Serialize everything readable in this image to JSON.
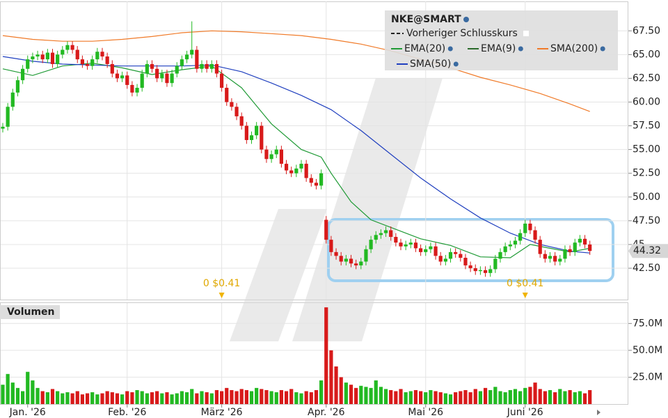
{
  "chart_data": {
    "type": "candlestick",
    "legend_title": "NKE@SMART",
    "prev_close_label": "Vorheriger Schlusskurs",
    "categories": [
      null,
      null,
      null,
      null,
      null,
      "Jan. '26",
      null,
      null,
      null,
      null,
      null,
      null,
      null,
      null,
      null,
      null,
      null,
      null,
      null,
      null,
      null,
      null,
      null,
      null,
      null,
      "Feb. '26",
      null,
      null,
      null,
      null,
      null,
      null,
      null,
      null,
      null,
      null,
      null,
      null,
      null,
      null,
      null,
      null,
      null,
      null,
      "März '26",
      null,
      null,
      null,
      null,
      null,
      null,
      null,
      null,
      null,
      null,
      null,
      null,
      null,
      null,
      null,
      null,
      null,
      null,
      null,
      null,
      "Apr. '26",
      null,
      null,
      null,
      null,
      null,
      null,
      null,
      null,
      null,
      null,
      null,
      null,
      null,
      null,
      null,
      null,
      null,
      null,
      null,
      "Mai '26",
      null,
      null,
      null,
      null,
      null,
      null,
      null,
      null,
      null,
      null,
      null,
      null,
      null,
      null,
      null,
      null,
      null,
      null,
      null,
      "Juni '26",
      null,
      null,
      null,
      null,
      null,
      null,
      null,
      null,
      null,
      null,
      null,
      null,
      null
    ],
    "open": [
      57.2,
      57.4,
      59.5,
      61.0,
      62.3,
      63.5,
      64.5,
      64.8,
      65.0,
      64.5,
      65.2,
      64.0,
      65.0,
      65.5,
      66.0,
      65.5,
      64.5,
      64.0,
      63.8,
      64.5,
      65.3,
      64.8,
      64.0,
      63.0,
      62.5,
      62.8,
      61.8,
      61.0,
      61.5,
      63.0,
      64.0,
      63.5,
      62.5,
      63.0,
      62.0,
      63.0,
      63.8,
      64.5,
      65.0,
      65.5,
      63.5,
      64.0,
      63.5,
      64.0,
      63.0,
      61.5,
      60.0,
      59.5,
      58.5,
      57.5,
      56.0,
      56.5,
      57.5,
      55.0,
      54.0,
      54.5,
      55.0,
      53.5,
      52.8,
      52.5,
      53.0,
      53.5,
      52.0,
      51.5,
      51.2,
      47.6,
      45.5,
      44.2,
      43.8,
      43.2,
      43.5,
      43.0,
      42.8,
      43.2,
      44.5,
      45.5,
      46.0,
      46.2,
      46.5,
      45.8,
      45.2,
      44.8,
      45.0,
      45.2,
      44.6,
      44.2,
      44.5,
      44.8,
      43.8,
      43.2,
      43.5,
      44.2,
      44.0,
      43.6,
      42.8,
      42.5,
      42.2,
      42.3,
      42.0,
      42.4,
      43.5,
      44.2,
      44.8,
      45.0,
      45.4,
      46.2,
      47.2,
      46.5,
      45.5,
      44.0,
      43.5,
      43.8,
      43.2,
      43.5,
      44.5,
      44.2,
      45.2,
      45.6,
      45.0
    ],
    "high": [
      57.8,
      59.9,
      61.4,
      62.7,
      63.9,
      64.9,
      65.2,
      65.4,
      65.4,
      65.6,
      65.6,
      65.4,
      65.9,
      66.4,
      66.4,
      65.9,
      64.9,
      64.4,
      64.9,
      65.7,
      65.7,
      65.2,
      64.4,
      63.4,
      63.2,
      63.2,
      62.2,
      61.9,
      63.4,
      64.4,
      64.4,
      63.9,
      63.4,
      63.4,
      63.4,
      64.2,
      64.9,
      65.4,
      68.5,
      65.9,
      64.4,
      64.4,
      64.4,
      64.4,
      63.4,
      61.9,
      60.4,
      59.9,
      58.9,
      57.9,
      56.9,
      57.9,
      57.9,
      55.4,
      54.9,
      55.4,
      55.4,
      53.9,
      53.2,
      53.4,
      53.9,
      53.9,
      52.4,
      51.9,
      52.9,
      48.0,
      45.9,
      44.6,
      44.2,
      43.9,
      43.9,
      43.4,
      43.6,
      44.9,
      45.9,
      46.4,
      46.6,
      46.9,
      46.9,
      46.2,
      45.6,
      45.4,
      45.6,
      45.6,
      45.0,
      44.9,
      45.2,
      45.2,
      44.2,
      43.9,
      44.6,
      44.6,
      44.4,
      44.0,
      43.2,
      42.9,
      42.7,
      42.7,
      42.8,
      43.9,
      44.6,
      45.2,
      45.4,
      45.8,
      46.6,
      47.6,
      47.6,
      46.9,
      45.9,
      44.4,
      44.2,
      44.2,
      43.9,
      44.9,
      44.9,
      45.6,
      46.0,
      46.0,
      45.4
    ],
    "low": [
      56.8,
      57.0,
      59.1,
      60.6,
      61.9,
      63.1,
      64.1,
      64.4,
      64.1,
      64.1,
      63.6,
      63.6,
      64.6,
      65.1,
      65.1,
      64.1,
      63.6,
      63.4,
      63.4,
      64.1,
      64.4,
      63.6,
      62.6,
      62.1,
      62.1,
      61.4,
      60.6,
      60.6,
      61.1,
      62.6,
      63.1,
      62.1,
      62.1,
      61.6,
      61.6,
      62.6,
      63.4,
      64.1,
      64.6,
      63.1,
      63.1,
      63.1,
      63.1,
      62.6,
      61.1,
      59.6,
      59.1,
      58.1,
      57.1,
      55.6,
      55.6,
      56.1,
      54.6,
      53.6,
      53.6,
      54.1,
      53.1,
      52.4,
      52.1,
      52.1,
      52.6,
      51.6,
      51.1,
      50.8,
      50.8,
      45.1,
      43.8,
      43.4,
      42.8,
      42.8,
      42.6,
      42.4,
      42.4,
      42.8,
      44.1,
      45.1,
      45.6,
      45.8,
      45.4,
      44.8,
      44.4,
      44.4,
      44.6,
      44.2,
      43.8,
      43.8,
      44.1,
      43.4,
      42.8,
      42.8,
      43.1,
      43.6,
      43.2,
      42.4,
      42.1,
      41.8,
      41.8,
      41.6,
      41.6,
      42.0,
      43.1,
      43.8,
      44.4,
      44.6,
      45.0,
      45.8,
      46.1,
      45.1,
      43.6,
      43.1,
      43.1,
      42.8,
      42.8,
      43.1,
      43.8,
      43.8,
      44.8,
      44.6,
      43.9
    ],
    "close": [
      57.4,
      59.5,
      61.0,
      62.3,
      63.5,
      64.5,
      64.8,
      65.0,
      64.5,
      65.2,
      64.0,
      65.0,
      65.5,
      66.0,
      65.5,
      64.5,
      64.0,
      63.8,
      64.5,
      65.3,
      64.8,
      64.0,
      63.0,
      62.5,
      62.8,
      61.8,
      61.0,
      61.5,
      63.0,
      64.0,
      63.5,
      62.5,
      63.0,
      62.0,
      63.0,
      63.8,
      64.5,
      65.0,
      65.5,
      63.5,
      64.0,
      63.5,
      64.0,
      63.0,
      61.5,
      60.0,
      59.5,
      58.5,
      57.5,
      56.0,
      56.5,
      57.5,
      55.0,
      54.0,
      54.5,
      55.0,
      53.5,
      52.8,
      52.5,
      53.0,
      53.5,
      52.0,
      51.5,
      51.2,
      52.5,
      45.5,
      44.2,
      43.8,
      43.2,
      43.5,
      43.0,
      42.8,
      43.2,
      44.5,
      45.5,
      46.0,
      46.2,
      46.5,
      45.8,
      45.2,
      44.8,
      45.0,
      45.2,
      44.6,
      44.2,
      44.5,
      44.8,
      43.8,
      43.2,
      43.5,
      44.2,
      44.0,
      43.6,
      42.8,
      42.5,
      42.2,
      42.3,
      42.0,
      42.4,
      43.5,
      44.2,
      44.8,
      45.0,
      45.4,
      46.2,
      47.2,
      46.5,
      45.5,
      44.0,
      43.5,
      43.8,
      43.2,
      43.5,
      44.5,
      44.2,
      45.2,
      45.6,
      45.0,
      44.32
    ],
    "up_color": "#22b922",
    "down_color": "#d81a1a",
    "ylim": [
      39.2,
      70.6
    ],
    "yticks": [
      {
        "value": 42.5,
        "label": "42.50"
      },
      45,
      {
        "value": 47.5,
        "label": "47.50"
      },
      {
        "value": 50,
        "label": "50.00"
      },
      {
        "value": 52.5,
        "label": "52.50"
      },
      {
        "value": 55,
        "label": "55.00"
      },
      {
        "value": 57.5,
        "label": "57.50"
      },
      {
        "value": 60,
        "label": "60.00"
      },
      {
        "value": 62.5,
        "label": "62.50"
      },
      {
        "value": 65,
        "label": "65.00"
      },
      {
        "value": 67.5,
        "label": "67.50"
      }
    ],
    "grid": true,
    "series": [
      {
        "name": "EMA(20)",
        "color": "#1f9a35",
        "x": [
          0,
          6,
          12,
          18,
          24,
          30,
          36,
          42,
          48,
          54,
          60,
          64,
          66,
          70,
          74,
          78,
          84,
          90,
          96,
          102,
          106,
          110,
          114,
          118
        ],
        "values": [
          63.5,
          62.8,
          63.8,
          64.1,
          63.6,
          62.9,
          63.4,
          63.8,
          61.5,
          57.7,
          55.0,
          54.2,
          52.5,
          49.5,
          47.6,
          46.8,
          45.6,
          44.9,
          43.7,
          43.6,
          45.0,
          44.6,
          44.2,
          44.6
        ]
      },
      {
        "name": "SMA(200)",
        "color": "#f07a28",
        "x": [
          0,
          6,
          12,
          18,
          24,
          30,
          36,
          42,
          48,
          54,
          60,
          66,
          72,
          78,
          84,
          90,
          96,
          102,
          108,
          114,
          118
        ],
        "values": [
          67.0,
          66.6,
          66.4,
          66.4,
          66.6,
          66.9,
          67.3,
          67.5,
          67.4,
          67.2,
          67.0,
          66.6,
          66.1,
          65.4,
          64.5,
          63.6,
          62.6,
          61.8,
          60.9,
          59.8,
          59.0
        ]
      },
      {
        "name": "SMA(50)",
        "color": "#1f3fbf",
        "x": [
          0,
          6,
          12,
          18,
          24,
          30,
          36,
          42,
          48,
          54,
          60,
          66,
          72,
          78,
          84,
          90,
          96,
          102,
          108,
          114,
          118
        ],
        "values": [
          64.8,
          64.3,
          64.0,
          63.9,
          63.8,
          63.8,
          63.8,
          63.9,
          63.2,
          62.0,
          60.7,
          59.2,
          57.0,
          54.5,
          52.0,
          49.8,
          47.8,
          46.2,
          45.0,
          44.3,
          44.1
        ]
      }
    ],
    "legend_extra": [
      {
        "name": "EMA(9)",
        "color": "#2a6a2a"
      }
    ],
    "dividends": [
      {
        "x": 44,
        "label": "0 $0.41"
      },
      {
        "x": 105,
        "label": "0 $0.41"
      }
    ],
    "last_price": 44.32,
    "volume_title": "Volumen",
    "volume": [
      18,
      28,
      20,
      15,
      12,
      30,
      22,
      15,
      12,
      11,
      14,
      12,
      10,
      11,
      10,
      12,
      9,
      10,
      11,
      9,
      10,
      12,
      11,
      10,
      9,
      12,
      11,
      13,
      12,
      10,
      11,
      12,
      10,
      11,
      9,
      10,
      12,
      11,
      14,
      10,
      12,
      11,
      10,
      13,
      12,
      15,
      13,
      12,
      14,
      13,
      12,
      15,
      14,
      13,
      12,
      11,
      13,
      12,
      14,
      11,
      10,
      12,
      11,
      13,
      22,
      90,
      50,
      35,
      25,
      20,
      18,
      15,
      17,
      16,
      15,
      22,
      16,
      14,
      13,
      12,
      14,
      11,
      12,
      13,
      12,
      11,
      13,
      12,
      11,
      10,
      9,
      11,
      12,
      13,
      11,
      14,
      12,
      15,
      13,
      16,
      12,
      11,
      13,
      14,
      12,
      15,
      16,
      20,
      14,
      12,
      13,
      11,
      14,
      12,
      13,
      11,
      12,
      10,
      13
    ],
    "volume_ylim": [
      0,
      94
    ],
    "volume_yticks": [
      {
        "value": 25,
        "label": "25.0M"
      },
      {
        "value": 50,
        "label": "50.0M"
      },
      {
        "value": 75,
        "label": "75.0M"
      }
    ]
  }
}
